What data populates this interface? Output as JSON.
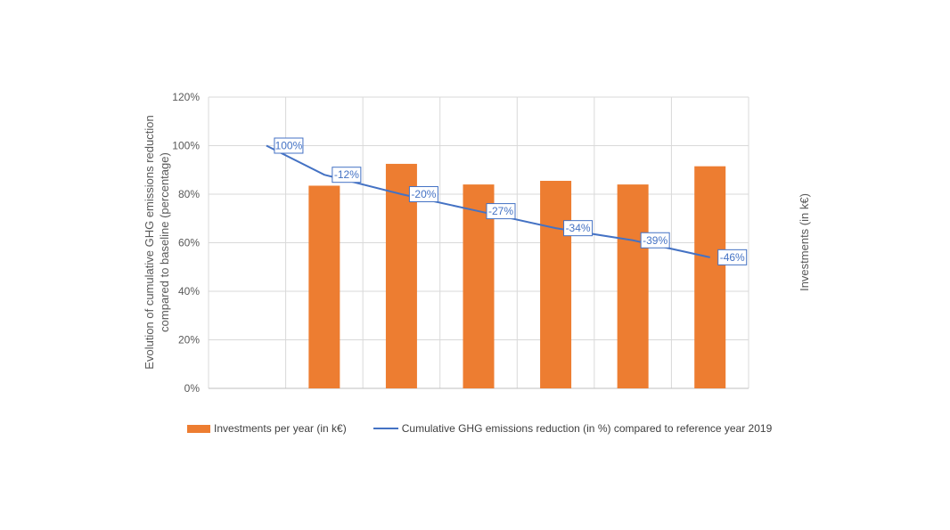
{
  "chart_data": {
    "type": "bar",
    "categories": [
      "",
      "",
      "",
      "",
      "",
      "",
      ""
    ],
    "series": [
      {
        "name": "Investments per year (in k€)",
        "kind": "bar",
        "axis": "secondary",
        "values": [
          null,
          83.5,
          92.5,
          84,
          85.5,
          84,
          91.5
        ],
        "color": "#ed7d31"
      },
      {
        "name": "Cumulative GHG emissions reduction (in %) compared to reference year 2019",
        "kind": "line",
        "axis": "primary",
        "values": [
          100,
          88,
          80,
          73,
          66,
          61,
          54
        ],
        "color": "#4472c4",
        "data_labels": [
          "100%",
          "-12%",
          "-20%",
          "-27%",
          "-34%",
          "-39%",
          "-46%"
        ]
      }
    ],
    "y_ticks": [
      "0%",
      "20%",
      "40%",
      "60%",
      "80%",
      "100%",
      "120%"
    ],
    "ylim": [
      0,
      120
    ],
    "ylabel_lines": [
      "Evolution of cumulative GHG emissions reduction",
      "compared to baseline (percentage)"
    ],
    "y2label": "Investments (in k€)",
    "grid": true,
    "legend_position": "bottom"
  }
}
